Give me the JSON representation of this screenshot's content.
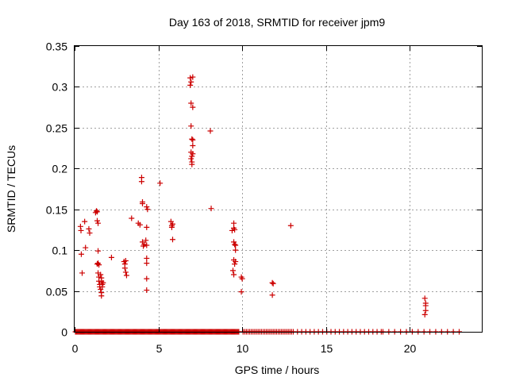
{
  "chart_data": {
    "type": "scatter",
    "title": "Day 163 of 2018, SRMTID for receiver jpm9",
    "xlabel": "GPS time / hours",
    "ylabel": "SRMTID / TECUs",
    "xlim": [
      0,
      24.3
    ],
    "ylim": [
      0,
      0.35
    ],
    "xticks": [
      0,
      5,
      10,
      15,
      20
    ],
    "xtick_labels": [
      "0",
      "5",
      "10",
      "15",
      "20"
    ],
    "yticks": [
      0,
      0.05,
      0.1,
      0.15,
      0.2,
      0.25,
      0.3,
      0.35
    ],
    "ytick_labels": [
      "0",
      "0.05",
      "0.1",
      "0.15",
      "0.2",
      "0.25",
      "0.3",
      "0.35"
    ],
    "grid": true,
    "marker": "+",
    "marker_color": "#cc0000",
    "series": [
      {
        "name": "SRMTID",
        "points": [
          [
            0.35,
            0.129
          ],
          [
            0.38,
            0.124
          ],
          [
            0.4,
            0.095
          ],
          [
            0.45,
            0.072
          ],
          [
            0.6,
            0.135
          ],
          [
            0.65,
            0.103
          ],
          [
            0.85,
            0.126
          ],
          [
            0.9,
            0.121
          ],
          [
            1.25,
            0.146
          ],
          [
            1.3,
            0.148
          ],
          [
            1.35,
            0.147
          ],
          [
            1.35,
            0.136
          ],
          [
            1.4,
            0.133
          ],
          [
            1.4,
            0.099
          ],
          [
            1.35,
            0.083
          ],
          [
            1.4,
            0.084
          ],
          [
            1.45,
            0.082
          ],
          [
            1.4,
            0.072
          ],
          [
            1.45,
            0.067
          ],
          [
            1.45,
            0.062
          ],
          [
            1.5,
            0.058
          ],
          [
            1.5,
            0.055
          ],
          [
            1.55,
            0.07
          ],
          [
            1.55,
            0.052
          ],
          [
            1.6,
            0.066
          ],
          [
            1.6,
            0.062
          ],
          [
            1.6,
            0.048
          ],
          [
            1.65,
            0.058
          ],
          [
            1.65,
            0.055
          ],
          [
            1.7,
            0.06
          ],
          [
            1.6,
            0.044
          ],
          [
            2.2,
            0.091
          ],
          [
            2.95,
            0.086
          ],
          [
            3.0,
            0.083
          ],
          [
            3.05,
            0.087
          ],
          [
            3.0,
            0.078
          ],
          [
            3.05,
            0.073
          ],
          [
            3.1,
            0.069
          ],
          [
            3.4,
            0.139
          ],
          [
            3.8,
            0.133
          ],
          [
            3.9,
            0.131
          ],
          [
            4.0,
            0.189
          ],
          [
            4.0,
            0.184
          ],
          [
            4.05,
            0.159
          ],
          [
            4.05,
            0.157
          ],
          [
            4.05,
            0.11
          ],
          [
            4.1,
            0.105
          ],
          [
            4.15,
            0.107
          ],
          [
            4.25,
            0.112
          ],
          [
            4.3,
            0.153
          ],
          [
            4.35,
            0.15
          ],
          [
            4.3,
            0.128
          ],
          [
            4.3,
            0.106
          ],
          [
            4.3,
            0.09
          ],
          [
            4.3,
            0.084
          ],
          [
            4.3,
            0.065
          ],
          [
            4.3,
            0.051
          ],
          [
            5.1,
            0.182
          ],
          [
            5.75,
            0.135
          ],
          [
            5.8,
            0.13
          ],
          [
            5.8,
            0.128
          ],
          [
            5.85,
            0.132
          ],
          [
            5.85,
            0.113
          ],
          [
            6.9,
            0.311
          ],
          [
            6.95,
            0.306
          ],
          [
            6.9,
            0.302
          ],
          [
            7.05,
            0.312
          ],
          [
            6.95,
            0.28
          ],
          [
            7.05,
            0.275
          ],
          [
            6.95,
            0.252
          ],
          [
            7.0,
            0.236
          ],
          [
            7.05,
            0.235
          ],
          [
            7.05,
            0.228
          ],
          [
            6.95,
            0.22
          ],
          [
            7.0,
            0.215
          ],
          [
            7.05,
            0.218
          ],
          [
            6.95,
            0.212
          ],
          [
            7.0,
            0.208
          ],
          [
            7.0,
            0.205
          ],
          [
            8.1,
            0.246
          ],
          [
            8.15,
            0.151
          ],
          [
            9.4,
            0.124
          ],
          [
            9.5,
            0.133
          ],
          [
            9.5,
            0.127
          ],
          [
            9.55,
            0.125
          ],
          [
            9.5,
            0.11
          ],
          [
            9.55,
            0.107
          ],
          [
            9.6,
            0.106
          ],
          [
            9.6,
            0.1
          ],
          [
            9.5,
            0.088
          ],
          [
            9.55,
            0.083
          ],
          [
            9.6,
            0.086
          ],
          [
            9.45,
            0.075
          ],
          [
            9.5,
            0.07
          ],
          [
            9.95,
            0.067
          ],
          [
            10.0,
            0.065
          ],
          [
            9.95,
            0.049
          ],
          [
            11.8,
            0.06
          ],
          [
            11.85,
            0.059
          ],
          [
            11.8,
            0.045
          ],
          [
            12.9,
            0.13
          ],
          [
            20.9,
            0.041
          ],
          [
            20.95,
            0.035
          ],
          [
            20.95,
            0.032
          ],
          [
            20.95,
            0.026
          ],
          [
            20.9,
            0.021
          ]
        ],
        "zero_segments": [
          [
            0.05,
            9.8,
            0.05
          ],
          [
            10.05,
            13.05,
            0.1
          ],
          [
            13.3,
            18.3,
            0.25
          ],
          [
            18.4,
            22.95,
            0.35
          ]
        ]
      }
    ]
  }
}
